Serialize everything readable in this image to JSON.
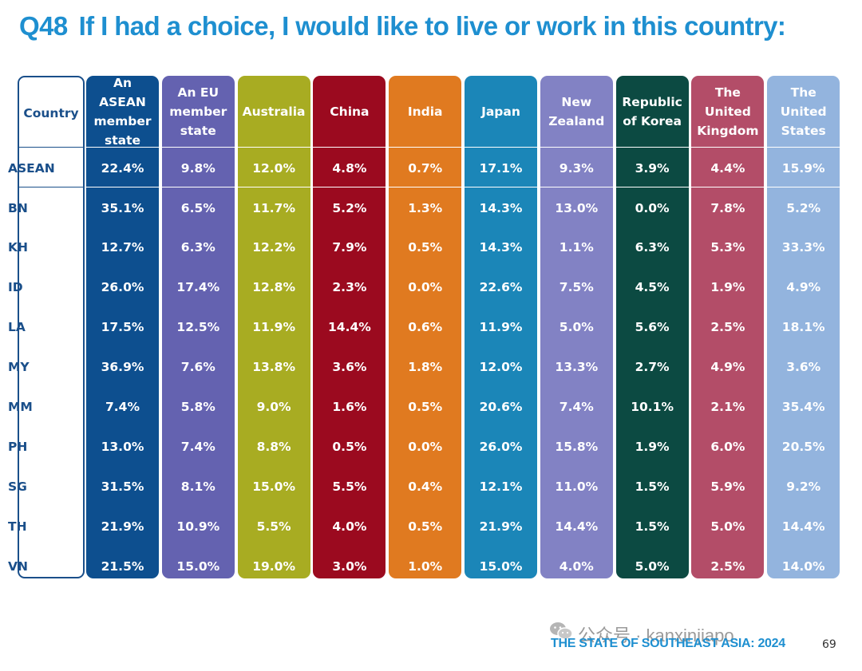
{
  "title": {
    "qnum": "Q48",
    "text": "If I had a choice, I would like to live or work in this country:"
  },
  "country_header": "Country",
  "row_labels": [
    "ASEAN",
    "BN",
    "KH",
    "ID",
    "LA",
    "MY",
    "MM",
    "PH",
    "SG",
    "TH",
    "VN"
  ],
  "columns": [
    {
      "header": "An ASEAN member state",
      "color": "#0d4f8f",
      "values": [
        "22.4%",
        "35.1%",
        "12.7%",
        "26.0%",
        "17.5%",
        "36.9%",
        "7.4%",
        "13.0%",
        "31.5%",
        "21.9%",
        "21.5%"
      ]
    },
    {
      "header": "An EU member state",
      "color": "#6462b0",
      "values": [
        "9.8%",
        "6.5%",
        "6.3%",
        "17.4%",
        "12.5%",
        "7.6%",
        "5.8%",
        "7.4%",
        "8.1%",
        "10.9%",
        "15.0%"
      ]
    },
    {
      "header": "Australia",
      "color": "#a8ac22",
      "values": [
        "12.0%",
        "11.7%",
        "12.2%",
        "12.8%",
        "11.9%",
        "13.8%",
        "9.0%",
        "8.8%",
        "15.0%",
        "5.5%",
        "19.0%"
      ]
    },
    {
      "header": "China",
      "color": "#9b0a1f",
      "values": [
        "4.8%",
        "5.2%",
        "7.9%",
        "2.3%",
        "14.4%",
        "3.6%",
        "1.6%",
        "0.5%",
        "5.5%",
        "4.0%",
        "3.0%"
      ]
    },
    {
      "header": "India",
      "color": "#e07a20",
      "values": [
        "0.7%",
        "1.3%",
        "0.5%",
        "0.0%",
        "0.6%",
        "1.8%",
        "0.5%",
        "0.0%",
        "0.4%",
        "0.5%",
        "1.0%"
      ]
    },
    {
      "header": "Japan",
      "color": "#1b86b8",
      "values": [
        "17.1%",
        "14.3%",
        "14.3%",
        "22.6%",
        "11.9%",
        "12.0%",
        "20.6%",
        "26.0%",
        "12.1%",
        "21.9%",
        "15.0%"
      ]
    },
    {
      "header": "New Zealand",
      "color": "#8282c4",
      "values": [
        "9.3%",
        "13.0%",
        "1.1%",
        "7.5%",
        "5.0%",
        "13.3%",
        "7.4%",
        "15.8%",
        "11.0%",
        "14.4%",
        "4.0%"
      ]
    },
    {
      "header": "Republic of Korea",
      "color": "#0c4a42",
      "values": [
        "3.9%",
        "0.0%",
        "6.3%",
        "4.5%",
        "5.6%",
        "2.7%",
        "10.1%",
        "1.9%",
        "1.5%",
        "1.5%",
        "5.0%"
      ]
    },
    {
      "header": "The United Kingdom",
      "color": "#b34d68",
      "values": [
        "4.4%",
        "7.8%",
        "5.3%",
        "1.9%",
        "2.5%",
        "4.9%",
        "2.1%",
        "6.0%",
        "5.9%",
        "5.0%",
        "2.5%"
      ]
    },
    {
      "header": "The United States",
      "color": "#93b4de",
      "values": [
        "15.9%",
        "5.2%",
        "33.3%",
        "4.9%",
        "18.1%",
        "3.6%",
        "35.4%",
        "20.5%",
        "9.2%",
        "14.4%",
        "14.0%"
      ]
    }
  ],
  "watermark": "公众号 · kanxinjiapo",
  "footer": "THE STATE OF SOUTHEAST ASIA: 2024",
  "page_number": "69"
}
